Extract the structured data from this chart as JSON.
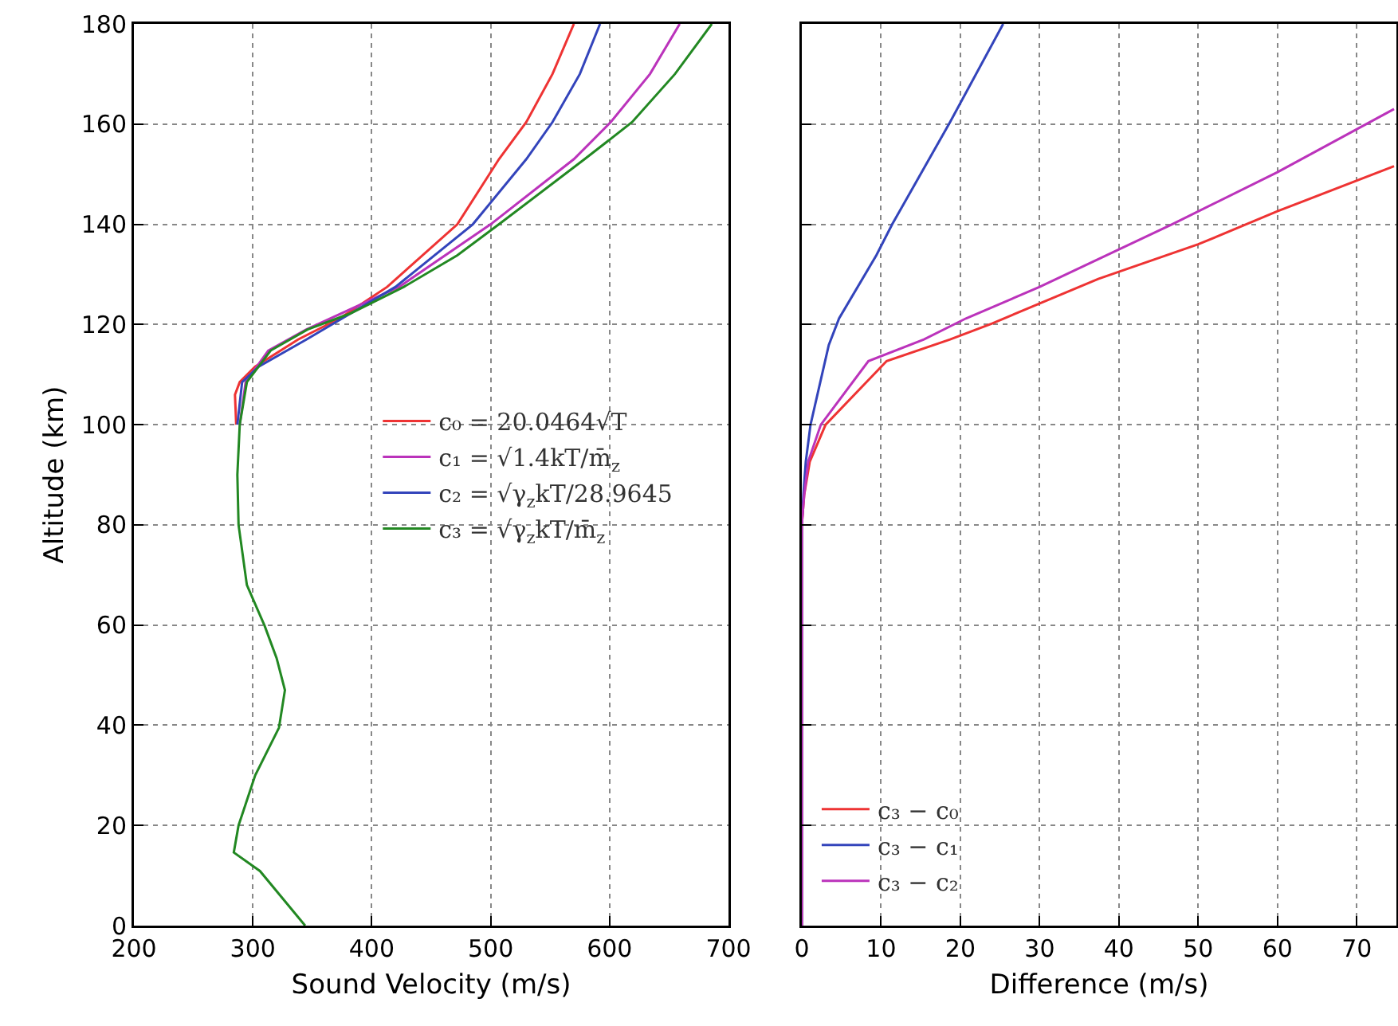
{
  "chart_data": [
    {
      "type": "line",
      "xlabel": "Sound Velocity (m/s)",
      "ylabel": "Altitude (km)",
      "xlim": [
        200,
        700
      ],
      "xticks": [
        200,
        300,
        400,
        500,
        600,
        700
      ],
      "ylim": [
        0,
        180
      ],
      "yticks": [
        0,
        20,
        40,
        60,
        80,
        100,
        120,
        140,
        160,
        180
      ],
      "grid": true,
      "legend": "right",
      "line_style": "solid",
      "marker": "none",
      "series": [
        {
          "name": "c₀ = 20.0464√T",
          "color": "#ee3333",
          "x": [
            286,
            285,
            289,
            302,
            338,
            373,
            413,
            472,
            507,
            530,
            552,
            570
          ],
          "values": [
            100,
            106,
            108.5,
            111.6,
            117,
            121.2,
            127.5,
            140,
            153,
            160.4,
            170,
            180
          ]
        },
        {
          "name": "c₁ = √1.4kT/m̄$_{z}$",
          "color": "#bb33bb",
          "x": [
            289,
            294,
            313,
            345,
            423,
            500,
            570,
            601,
            634,
            659
          ],
          "values": [
            100,
            108.5,
            114.8,
            119,
            127.5,
            140,
            153,
            160.4,
            170,
            180
          ]
        },
        {
          "name": "c₂ = √γ$_{z}$kT/28.9645",
          "color": "#3344bb",
          "x": [
            287,
            291,
            305,
            345,
            420,
            485,
            530,
            552,
            575,
            592
          ],
          "values": [
            100,
            108.5,
            111.6,
            117,
            127.5,
            140,
            153,
            160.4,
            170,
            180
          ]
        },
        {
          "name": "c₃ = √γ$_{z}$kT/m̄$_{z}$",
          "color": "#228822",
          "x": [
            344,
            306,
            284,
            288,
            302,
            322,
            327,
            320,
            310,
            295,
            288,
            287,
            289,
            295,
            315,
            346,
            382,
            427,
            472,
            507,
            579,
            619,
            655,
            686
          ],
          "values": [
            0,
            10.9,
            14.6,
            20,
            30,
            39.5,
            47,
            53.4,
            59.8,
            68,
            80,
            90,
            100,
            108.5,
            114.8,
            119,
            122.2,
            127.5,
            133.8,
            140,
            153,
            160.4,
            170,
            180
          ]
        }
      ]
    },
    {
      "type": "line",
      "xlabel": "Difference (m/s)",
      "xlim": [
        0,
        75
      ],
      "xticks": [
        0,
        10,
        20,
        30,
        40,
        50,
        60,
        70
      ],
      "ylim": [
        0,
        180
      ],
      "yticks": [
        0,
        20,
        40,
        60,
        80,
        100,
        120,
        140,
        160,
        180
      ],
      "tick_labels": "x",
      "grid": true,
      "legend": "bottom left",
      "line_style": "solid",
      "marker": "none",
      "series": [
        {
          "name": "c₃ − c₀",
          "color": "#ee3333",
          "x": [
            0,
            0,
            0.3,
            1,
            3,
            10.7,
            18.7,
            24,
            37.4,
            50,
            60,
            74.7
          ],
          "values": [
            0,
            80,
            86,
            92.6,
            100,
            112.7,
            117,
            120.2,
            129.1,
            136,
            142.6,
            151.6
          ]
        },
        {
          "name": "c₃ − c₁",
          "color": "#3344bb",
          "x": [
            0,
            0,
            0.2,
            0.5,
            1.1,
            3.4,
            4.7,
            9.4,
            11.4,
            18.7,
            25.4
          ],
          "values": [
            0,
            80,
            86,
            92.6,
            100,
            115.9,
            121.2,
            133.8,
            140,
            160.4,
            180
          ]
        },
        {
          "name": "c₃ − c₂",
          "color": "#bb33bb",
          "x": [
            0,
            0,
            0.3,
            0.8,
            2.4,
            8.4,
            15.4,
            20.7,
            30,
            46.7,
            60,
            74.7
          ],
          "values": [
            0,
            80,
            86,
            92.6,
            100,
            112.7,
            117,
            121.2,
            127.5,
            140,
            150.4,
            163
          ]
        }
      ]
    }
  ]
}
